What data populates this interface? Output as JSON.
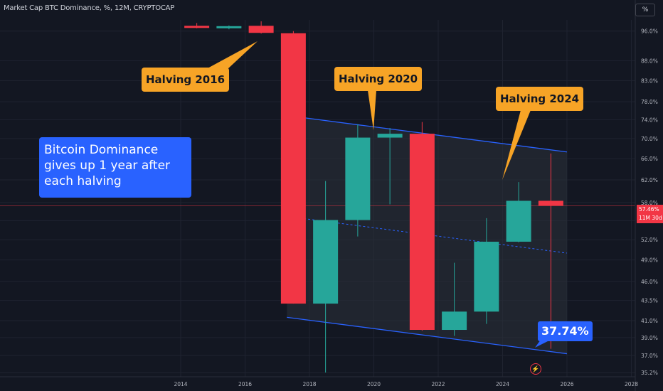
{
  "header": {
    "title": "Market Cap BTC Dominance, %, 12M, CRYPTOCAP",
    "scale_button": "%"
  },
  "colors": {
    "background": "#131722",
    "up": "#26a69a",
    "down": "#f23645",
    "channel": "#2962ff",
    "callout": "#f7a426",
    "grid": "#1f2330",
    "axis_text": "#b2b5be"
  },
  "annotations": {
    "halving_2016": "Halving 2016",
    "halving_2020": "Halving 2020",
    "halving_2024": "Halving 2024",
    "note_lines": [
      "Bitcoin Dominance",
      "gives up 1 year after",
      "each halving"
    ],
    "low_label": "37.74%"
  },
  "price_tag": {
    "value": "57.46%",
    "countdown": "11M 30d"
  },
  "chart_data": {
    "type": "candlestick",
    "timeframe": "12M",
    "y_scale": "log",
    "ylim": [
      35.2,
      99
    ],
    "xlim": [
      2013.0,
      2028.5
    ],
    "x_ticks": [
      2014,
      2016,
      2018,
      2020,
      2022,
      2024,
      2026,
      2028
    ],
    "y_ticks": [
      35.2,
      37.0,
      39.0,
      41.0,
      43.5,
      46.0,
      49.0,
      52.0,
      55.0,
      58.0,
      62.0,
      66.0,
      70.0,
      74.0,
      78.0,
      83.0,
      88.0,
      96.0
    ],
    "y_tick_labels": [
      "35.2%",
      "37.0%",
      "39.0%",
      "41.0%",
      "43.5%",
      "46.0%",
      "49.0%",
      "52.0%",
      "55.0%",
      "58.0%",
      "62.0%",
      "66.0%",
      "70.0%",
      "74.0%",
      "78.0%",
      "83.0%",
      "88.0%",
      "96.0%"
    ],
    "candles": [
      {
        "year": 2014,
        "open": 97.5,
        "high": 98.3,
        "low": 96.8,
        "close": 97.0
      },
      {
        "year": 2015,
        "open": 97.0,
        "high": 97.6,
        "low": 96.5,
        "close": 97.4
      },
      {
        "year": 2016,
        "open": 97.5,
        "high": 98.8,
        "low": 95.3,
        "close": 95.5
      },
      {
        "year": 2017,
        "open": 95.4,
        "high": 96.0,
        "low": 43.1,
        "close": 43.1
      },
      {
        "year": 2018,
        "open": 43.1,
        "high": 61.8,
        "low": 35.2,
        "close": 55.1
      },
      {
        "year": 2019,
        "open": 55.1,
        "high": 73.0,
        "low": 52.5,
        "close": 70.2
      },
      {
        "year": 2020,
        "open": 70.2,
        "high": 72.2,
        "low": 57.7,
        "close": 71.0
      },
      {
        "year": 2021,
        "open": 71.0,
        "high": 73.5,
        "low": 39.8,
        "close": 39.9
      },
      {
        "year": 2022,
        "open": 39.9,
        "high": 48.6,
        "low": 39.2,
        "close": 42.1
      },
      {
        "year": 2023,
        "open": 42.1,
        "high": 55.4,
        "low": 40.6,
        "close": 51.7
      },
      {
        "year": 2024,
        "open": 51.7,
        "high": 61.6,
        "low": 51.6,
        "close": 58.3
      },
      {
        "year": 2025,
        "open": 58.3,
        "high": 67.0,
        "low": 37.74,
        "close": 57.46
      }
    ],
    "channel": {
      "upper": [
        [
          2017.3,
          74.9
        ],
        [
          2026.0,
          67.3
        ]
      ],
      "lower": [
        [
          2017.3,
          41.4
        ],
        [
          2026.0,
          37.2
        ]
      ],
      "mid": [
        [
          2017.3,
          55.7
        ],
        [
          2026.0,
          50.0
        ]
      ]
    },
    "current_price": 57.46
  }
}
